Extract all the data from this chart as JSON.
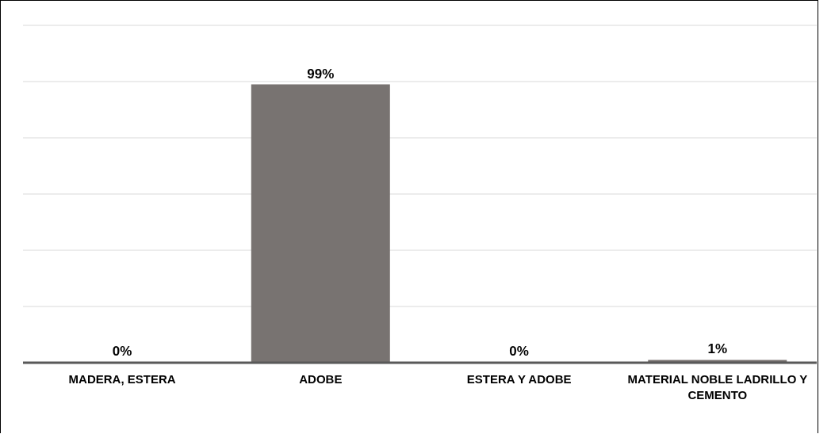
{
  "chart_data": {
    "type": "bar",
    "categories": [
      "MADERA, ESTERA",
      "ADOBE",
      "ESTERA Y ADOBE",
      "MATERIAL NOBLE LADRILLO Y CEMENTO"
    ],
    "values": [
      0,
      99,
      0,
      1
    ],
    "color": "#787371",
    "value_labels": [
      "0%",
      "99%",
      "0%",
      "1%"
    ],
    "ylim": [
      0,
      120
    ],
    "yticks": [
      {
        "value": 0,
        "label": null
      },
      {
        "value": 20,
        "label": null
      },
      {
        "value": 40,
        "label": null
      },
      {
        "value": 60,
        "label": null
      },
      {
        "value": 80,
        "label": null
      },
      {
        "value": 100,
        "label": null
      },
      {
        "value": 120,
        "label": null
      }
    ],
    "grid": "y",
    "tick_labels": "x"
  }
}
